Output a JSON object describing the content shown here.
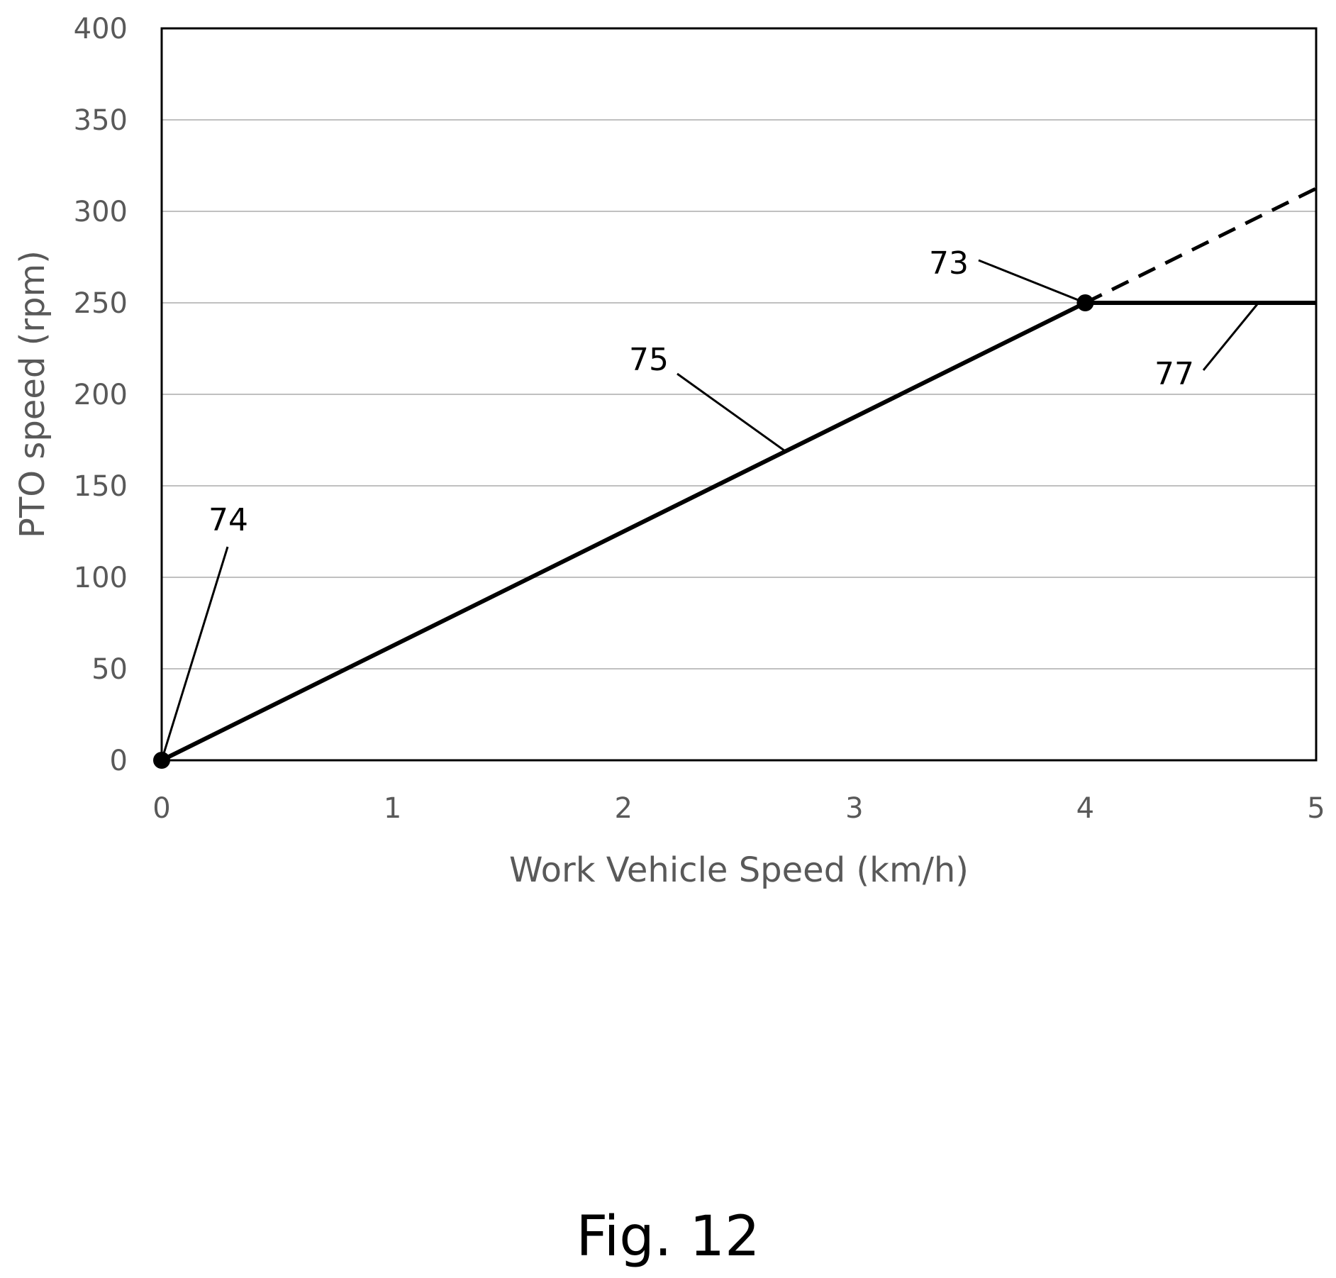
{
  "chart_data": {
    "type": "line",
    "xlabel": "Work Vehicle Speed (km/h)",
    "ylabel": "PTO speed (rpm)",
    "xlim": [
      0,
      5
    ],
    "ylim": [
      0,
      400
    ],
    "x_ticks": [
      "0",
      "1",
      "2",
      "3",
      "4",
      "5"
    ],
    "y_ticks": [
      "0",
      "50",
      "100",
      "150",
      "200",
      "250",
      "300",
      "350",
      "400"
    ],
    "grid": "horizontal",
    "series": [
      {
        "ref": "75",
        "style": "solid",
        "points": [
          [
            0,
            0
          ],
          [
            4,
            250
          ]
        ]
      },
      {
        "ref": "77",
        "style": "solid",
        "points": [
          [
            4,
            250
          ],
          [
            5,
            250
          ]
        ]
      },
      {
        "style": "dashed",
        "points": [
          [
            4,
            250
          ],
          [
            5,
            312.5
          ]
        ]
      }
    ],
    "markers": [
      {
        "ref": "74",
        "x": 0,
        "y": 0
      },
      {
        "ref": "73",
        "x": 4,
        "y": 250
      }
    ],
    "annotations": [
      {
        "text": "74",
        "target": [
          0,
          0
        ]
      },
      {
        "text": "75",
        "target": [
          2.7,
          169
        ]
      },
      {
        "text": "73",
        "target": [
          4,
          250
        ]
      },
      {
        "text": "77",
        "target": [
          4.75,
          250
        ]
      }
    ],
    "caption": "Fig. 12"
  },
  "colors": {
    "line": "#000000",
    "grid": "#c0c0c0",
    "axis_text": "#595959"
  }
}
